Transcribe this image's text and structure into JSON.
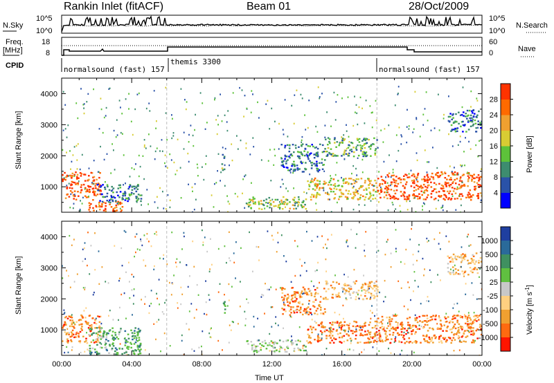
{
  "header": {
    "station": "Rankin Inlet (fitACF)",
    "beam": "Beam 01",
    "date": "28/Oct/2009"
  },
  "noise_panel": {
    "left_label": "N.Sky",
    "right_label": "N.Search",
    "left_ticks": [
      "10^5",
      "10^0"
    ],
    "right_ticks": [
      "10^5",
      "10^0"
    ]
  },
  "freq_panel": {
    "left_label_1": "Freq.",
    "left_label_2": "[MHz]",
    "right_label": "Nave",
    "left_ticks": [
      "18",
      "8"
    ],
    "right_ticks": [
      "60",
      "0"
    ]
  },
  "cpid": {
    "label": "CPID",
    "segments": [
      {
        "name": "normalsound (fast) 157",
        "start_hr": 0,
        "end_hr": 6
      },
      {
        "name": "themis 3300",
        "start_hr": 6,
        "end_hr": 18
      },
      {
        "name": "normalsound (fast) 157",
        "start_hr": 18,
        "end_hr": 24
      }
    ]
  },
  "chart_data": [
    {
      "type": "heatmap",
      "name": "power",
      "xlabel": "",
      "ylabel": "Slant Range [km]",
      "xlim": [
        0,
        24
      ],
      "ylim": [
        180,
        4500
      ],
      "yticks": [
        1000,
        2000,
        3000,
        4000
      ],
      "colorbar": {
        "label": "Power [dB]",
        "ticks": [
          4,
          8,
          12,
          16,
          20,
          24,
          28
        ],
        "colors": [
          "#0000ff",
          "#2a52a8",
          "#3d8c6f",
          "#5dc23a",
          "#d8cc33",
          "#f0a030",
          "#ff6a00",
          "#ff3300"
        ]
      },
      "regions": [
        {
          "x": [
            0,
            2.2
          ],
          "y": [
            600,
            1500
          ],
          "value": 28
        },
        {
          "x": [
            1.5,
            3.5
          ],
          "y": [
            200,
            550
          ],
          "value": 28
        },
        {
          "x": [
            2.0,
            4.5
          ],
          "y": [
            500,
            1100
          ],
          "value": 8
        },
        {
          "x": [
            9.1,
            9.3
          ],
          "y": [
            1500,
            2100
          ],
          "value": 12
        },
        {
          "x": [
            10.5,
            14
          ],
          "y": [
            300,
            700
          ],
          "value": 16
        },
        {
          "x": [
            12.5,
            15
          ],
          "y": [
            1500,
            2400
          ],
          "value": 8
        },
        {
          "x": [
            14,
            18
          ],
          "y": [
            600,
            1300
          ],
          "value": 20
        },
        {
          "x": [
            15,
            18
          ],
          "y": [
            2000,
            2600
          ],
          "value": 12
        },
        {
          "x": [
            18,
            24
          ],
          "y": [
            600,
            1500
          ],
          "value": 28
        },
        {
          "x": [
            22,
            24
          ],
          "y": [
            2800,
            3500
          ],
          "value": 8
        }
      ]
    },
    {
      "type": "heatmap",
      "name": "velocity",
      "xlabel": "Time UT",
      "ylabel": "Slant Range [km]",
      "xlim": [
        0,
        24
      ],
      "ylim": [
        180,
        4500
      ],
      "xticks": [
        "00:00",
        "04:00",
        "08:00",
        "12:00",
        "16:00",
        "20:00",
        "00:00"
      ],
      "yticks": [
        1000,
        2000,
        3000,
        4000
      ],
      "colorbar": {
        "label": "Velocity [m s^-1]",
        "ticks": [
          1000,
          500,
          100,
          25,
          -25,
          -100,
          -500,
          -1000
        ],
        "colors": [
          "#1f3fa0",
          "#2a6a9a",
          "#3f9060",
          "#60c040",
          "#c8c8c8",
          "#ffd080",
          "#f0a030",
          "#ff6a10",
          "#ff1500"
        ]
      },
      "regions": [
        {
          "x": [
            0,
            2.2
          ],
          "y": [
            600,
            1500
          ],
          "value": -500
        },
        {
          "x": [
            1.5,
            4.5
          ],
          "y": [
            200,
            1100
          ],
          "value": 100
        },
        {
          "x": [
            9.1,
            9.3
          ],
          "y": [
            1500,
            2100
          ],
          "value": 100
        },
        {
          "x": [
            10.5,
            14
          ],
          "y": [
            300,
            700
          ],
          "value": 25
        },
        {
          "x": [
            12.5,
            15
          ],
          "y": [
            1500,
            2400
          ],
          "value": -500
        },
        {
          "x": [
            14,
            18
          ],
          "y": [
            600,
            1300
          ],
          "value": -500
        },
        {
          "x": [
            15,
            18
          ],
          "y": [
            2000,
            2600
          ],
          "value": -100
        },
        {
          "x": [
            18,
            24
          ],
          "y": [
            600,
            1500
          ],
          "value": -500
        },
        {
          "x": [
            22,
            24
          ],
          "y": [
            2800,
            3500
          ],
          "value": -100
        }
      ]
    }
  ]
}
